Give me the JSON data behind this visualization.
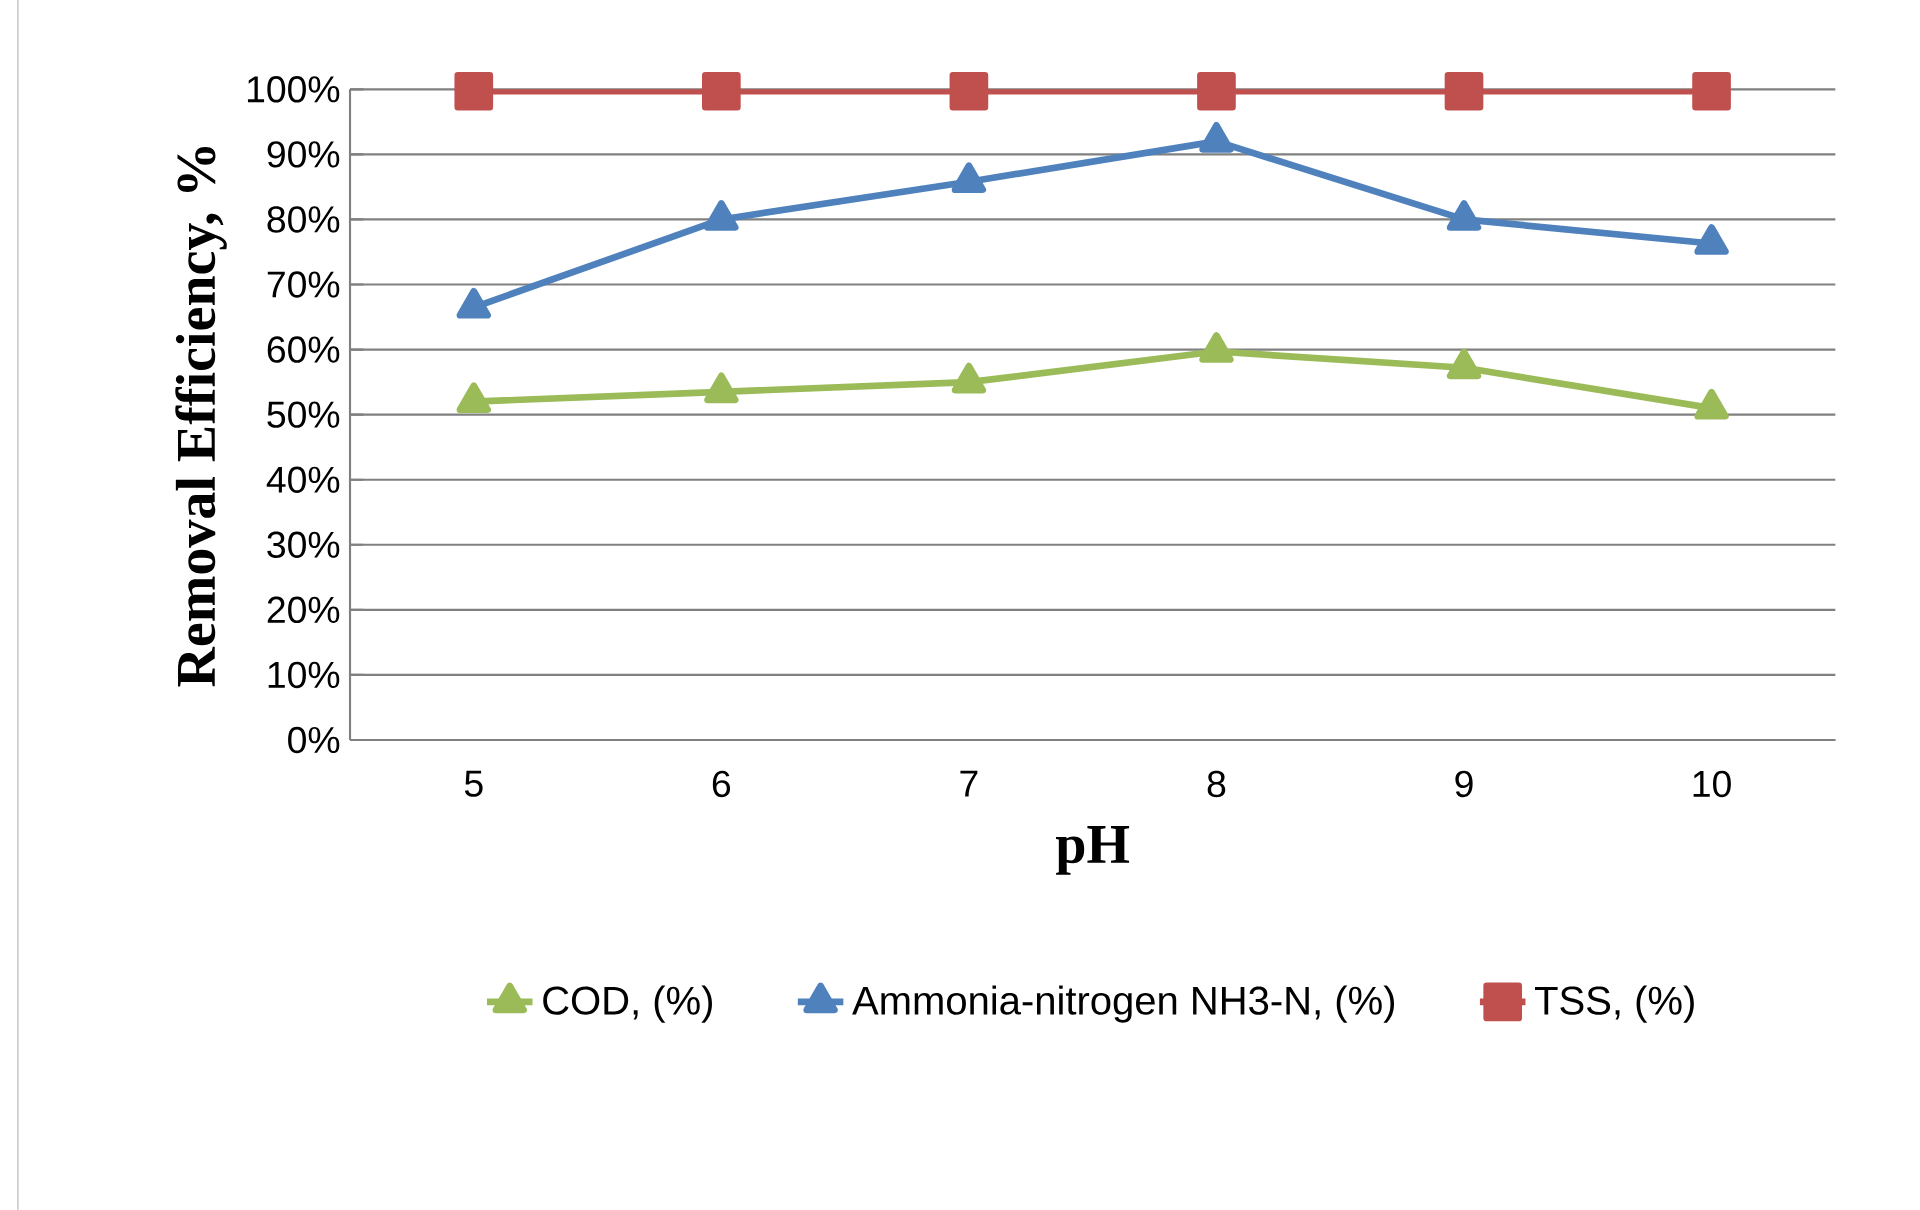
{
  "chart_data": {
    "type": "line",
    "xlabel": "pH",
    "ylabel": "Removal Efficiency, %",
    "categories": [
      "5",
      "6",
      "7",
      "8",
      "9",
      "10"
    ],
    "series": [
      {
        "name": "COD, (%)",
        "color": "#9bbb59",
        "marker": "triangle",
        "values": [
          52,
          53.5,
          55,
          59.7,
          57.2,
          51
        ]
      },
      {
        "name": "Ammonia-nitrogen NH3-N, (%)",
        "color": "#4f81bd",
        "marker": "triangle",
        "values": [
          66.5,
          80,
          85.8,
          92,
          80,
          76.3
        ]
      },
      {
        "name": "TSS, (%)",
        "color": "#c0504d",
        "marker": "square",
        "values": [
          99.7,
          99.7,
          99.7,
          99.7,
          99.7,
          99.7
        ]
      }
    ],
    "ylim": [
      0,
      100
    ],
    "yticks": [
      {
        "value": 0,
        "label": "0%"
      },
      {
        "value": 10,
        "label": "10%"
      },
      {
        "value": 20,
        "label": "20%"
      },
      {
        "value": 30,
        "label": "30%"
      },
      {
        "value": 40,
        "label": "40%"
      },
      {
        "value": 50,
        "label": "50%"
      },
      {
        "value": 60,
        "label": "60%"
      },
      {
        "value": 70,
        "label": "70%"
      },
      {
        "value": 80,
        "label": "80%"
      },
      {
        "value": 90,
        "label": "90%"
      },
      {
        "value": 100,
        "label": "100%"
      }
    ],
    "grid": "y",
    "legend": "bottom"
  }
}
